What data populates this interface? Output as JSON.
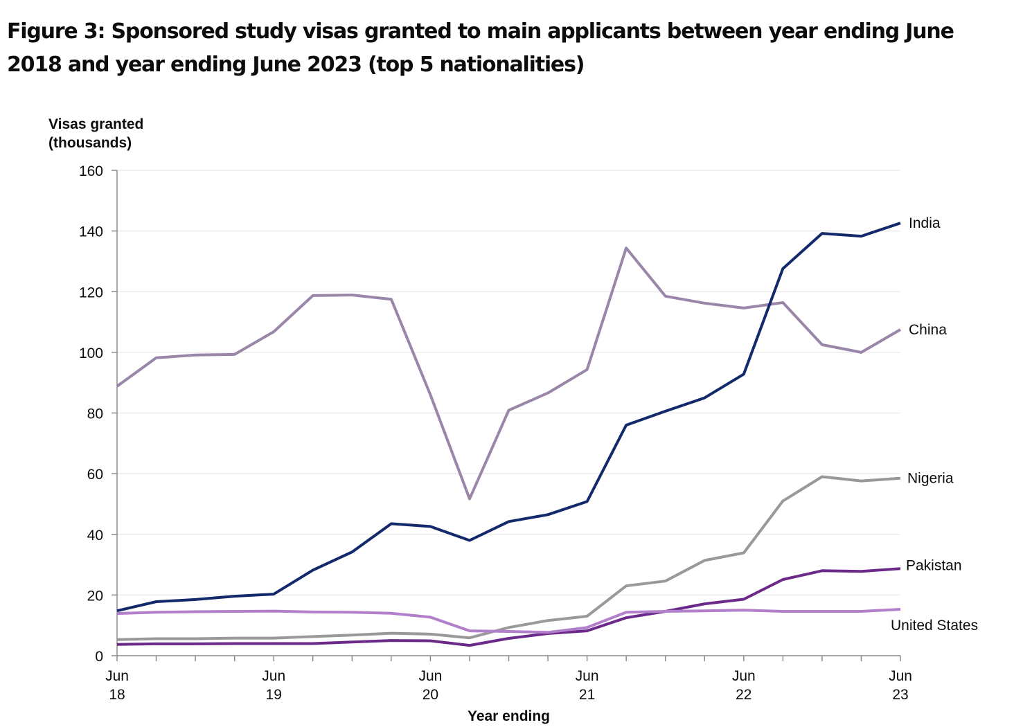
{
  "chart_data": {
    "type": "line",
    "title": "Figure 3: Sponsored study visas granted to main applicants between year ending June 2018 and year ending June 2023 (top 5 nationalities)",
    "ylabel_line1": "Visas granted",
    "ylabel_line2": "(thousands)",
    "xlabel": "Year ending",
    "ylim": [
      0,
      160
    ],
    "yticks": [
      0,
      20,
      40,
      60,
      80,
      100,
      120,
      140,
      160
    ],
    "grid": true,
    "legend": "direct-labels-right",
    "x": [
      "Jun 18",
      "Sep 18",
      "Dec 18",
      "Mar 19",
      "Jun 19",
      "Sep 19",
      "Dec 19",
      "Mar 20",
      "Jun 20",
      "Sep 20",
      "Dec 20",
      "Mar 21",
      "Jun 21",
      "Sep 21",
      "Dec 21",
      "Mar 22",
      "Jun 22",
      "Sep 22",
      "Dec 22",
      "Mar 23",
      "Jun 23"
    ],
    "xtick_labels": [
      {
        "index": 0,
        "line1": "Jun",
        "line2": "18"
      },
      {
        "index": 4,
        "line1": "Jun",
        "line2": "19"
      },
      {
        "index": 8,
        "line1": "Jun",
        "line2": "20"
      },
      {
        "index": 12,
        "line1": "Jun",
        "line2": "21"
      },
      {
        "index": 16,
        "line1": "Jun",
        "line2": "22"
      },
      {
        "index": 20,
        "line1": "Jun",
        "line2": "23"
      }
    ],
    "series": [
      {
        "name": "China",
        "color": "#9a86a8",
        "values": [
          88.8,
          98.2,
          99.1,
          99.3,
          106.8,
          118.7,
          118.9,
          117.5,
          86.0,
          51.7,
          80.9,
          86.6,
          94.3,
          134.4,
          118.5,
          116.2,
          114.6,
          116.4,
          102.5,
          100.0,
          107.5
        ]
      },
      {
        "name": "India",
        "color": "#12296b",
        "values": [
          14.8,
          17.8,
          18.5,
          19.6,
          20.3,
          28.2,
          34.2,
          43.5,
          42.6,
          38.0,
          44.2,
          46.5,
          50.8,
          76.0,
          80.6,
          85.0,
          92.8,
          127.6,
          139.2,
          138.3,
          142.6
        ]
      },
      {
        "name": "Nigeria",
        "color": "#999999",
        "values": [
          5.3,
          5.6,
          5.6,
          5.8,
          5.8,
          6.3,
          6.8,
          7.4,
          7.1,
          5.9,
          9.3,
          11.6,
          13.0,
          23.0,
          24.6,
          31.4,
          33.9,
          51.0,
          59.0,
          57.6,
          58.5
        ]
      },
      {
        "name": "Pakistan",
        "color": "#6b2a89",
        "values": [
          3.7,
          3.9,
          3.9,
          4.0,
          4.0,
          4.0,
          4.5,
          5.0,
          4.9,
          3.4,
          5.7,
          7.3,
          8.2,
          12.5,
          14.6,
          17.1,
          18.6,
          25.1,
          28.0,
          27.8,
          28.7
        ]
      },
      {
        "name": "United States",
        "color": "#b27fcb",
        "values": [
          13.9,
          14.3,
          14.5,
          14.6,
          14.7,
          14.4,
          14.3,
          14.0,
          12.7,
          8.2,
          8.0,
          7.7,
          9.3,
          14.3,
          14.6,
          14.8,
          15.0,
          14.6,
          14.6,
          14.6,
          15.3
        ]
      }
    ],
    "series_labels": [
      "India",
      "China",
      "Nigeria",
      "Pakistan",
      "United States"
    ]
  }
}
